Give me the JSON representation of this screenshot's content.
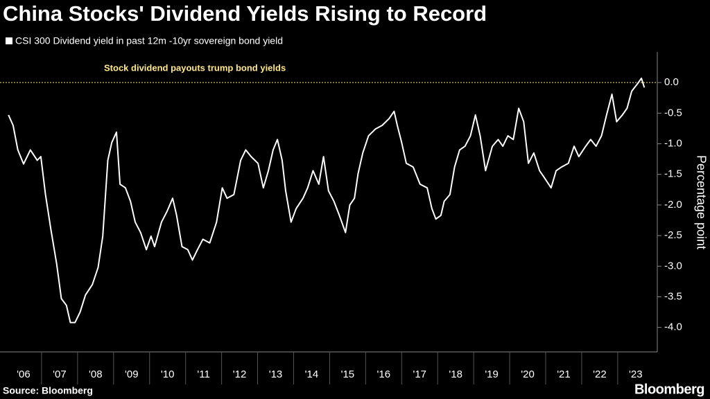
{
  "chart_data": {
    "type": "line",
    "title": "China Stocks' Dividend Yields Rising to Record",
    "legend_label": "CSI 300 Dividend yield in past 12m -10yr sovereign bond yield",
    "y_label": "Percentage point",
    "annotation": "Stock dividend payouts trump bond yields",
    "reference_line": 0,
    "source": "Source: Bloomberg",
    "brand": "Bloomberg",
    "xlim": [
      2006,
      2024.1
    ],
    "xticks": [
      {
        "value": 2006.5,
        "label": "'06"
      },
      {
        "value": 2007.5,
        "label": "'07"
      },
      {
        "value": 2008.5,
        "label": "'08"
      },
      {
        "value": 2009.5,
        "label": "'09"
      },
      {
        "value": 2010.5,
        "label": "'10"
      },
      {
        "value": 2011.5,
        "label": "'11"
      },
      {
        "value": 2012.5,
        "label": "'12"
      },
      {
        "value": 2013.5,
        "label": "'13"
      },
      {
        "value": 2014.5,
        "label": "'14"
      },
      {
        "value": 2015.5,
        "label": "'15"
      },
      {
        "value": 2016.5,
        "label": "'16"
      },
      {
        "value": 2017.5,
        "label": "'17"
      },
      {
        "value": 2018.5,
        "label": "'18"
      },
      {
        "value": 2019.5,
        "label": "'19"
      },
      {
        "value": 2020.5,
        "label": "'20"
      },
      {
        "value": 2021.5,
        "label": "'21"
      },
      {
        "value": 2022.5,
        "label": "'22"
      },
      {
        "value": 2023.5,
        "label": "'23"
      }
    ],
    "ylim": [
      -4.4,
      0.5
    ],
    "yticks": [
      {
        "value": 0,
        "label": "0.0"
      },
      -0.5,
      {
        "value": -1,
        "label": "-1.0"
      },
      -1.5,
      {
        "value": -2,
        "label": "-2.0"
      },
      -2.5,
      {
        "value": -3,
        "label": "-3.0"
      },
      -3.5,
      {
        "value": -4,
        "label": "-4.0"
      }
    ],
    "x": [
      2006.08,
      2006.21,
      2006.34,
      2006.5,
      2006.69,
      2006.88,
      2006.98,
      2007.11,
      2007.26,
      2007.42,
      2007.55,
      2007.69,
      2007.8,
      2007.93,
      2008.07,
      2008.22,
      2008.41,
      2008.57,
      2008.7,
      2008.84,
      2008.95,
      2009.08,
      2009.18,
      2009.33,
      2009.47,
      2009.6,
      2009.75,
      2009.91,
      2010.04,
      2010.14,
      2010.33,
      2010.48,
      2010.64,
      2010.75,
      2010.9,
      2011.06,
      2011.19,
      2011.33,
      2011.48,
      2011.67,
      2011.86,
      2012.02,
      2012.15,
      2012.34,
      2012.53,
      2012.67,
      2012.82,
      2013.01,
      2013.16,
      2013.3,
      2013.43,
      2013.55,
      2013.68,
      2013.78,
      2013.93,
      2014.07,
      2014.26,
      2014.39,
      2014.54,
      2014.7,
      2014.83,
      2014.97,
      2015.12,
      2015.27,
      2015.44,
      2015.56,
      2015.69,
      2015.79,
      2015.92,
      2016.08,
      2016.27,
      2016.46,
      2016.65,
      2016.79,
      2016.88,
      2017.0,
      2017.13,
      2017.32,
      2017.51,
      2017.71,
      2017.84,
      2017.95,
      2018.09,
      2018.18,
      2018.34,
      2018.47,
      2018.61,
      2018.76,
      2018.91,
      2019.05,
      2019.18,
      2019.33,
      2019.52,
      2019.68,
      2019.81,
      2019.95,
      2020.1,
      2020.25,
      2020.39,
      2020.52,
      2020.67,
      2020.83,
      2020.96,
      2021.15,
      2021.29,
      2021.44,
      2021.63,
      2021.79,
      2021.92,
      2022.11,
      2022.25,
      2022.4,
      2022.55,
      2022.69,
      2022.84,
      2022.97,
      2023.13,
      2023.26,
      2023.39,
      2023.55,
      2023.66,
      2023.74
    ],
    "series": [
      {
        "name": "CSI 300 Dividend yield in past 12m -10yr sovereign bond yield",
        "color": "#ffffff",
        "values": [
          -0.53,
          -0.7,
          -1.1,
          -1.33,
          -1.1,
          -1.27,
          -1.21,
          -1.83,
          -2.4,
          -2.96,
          -3.53,
          -3.64,
          -3.92,
          -3.92,
          -3.75,
          -3.47,
          -3.3,
          -3.02,
          -2.51,
          -1.27,
          -0.98,
          -0.81,
          -1.66,
          -1.72,
          -1.94,
          -2.28,
          -2.45,
          -2.73,
          -2.51,
          -2.68,
          -2.28,
          -2.11,
          -1.89,
          -2.17,
          -2.68,
          -2.73,
          -2.9,
          -2.73,
          -2.56,
          -2.62,
          -2.28,
          -1.72,
          -1.89,
          -1.83,
          -1.27,
          -1.1,
          -1.21,
          -1.32,
          -1.72,
          -1.44,
          -1.1,
          -0.93,
          -1.27,
          -1.77,
          -2.28,
          -2.06,
          -1.89,
          -1.72,
          -1.44,
          -1.66,
          -1.21,
          -1.77,
          -1.94,
          -2.17,
          -2.45,
          -2.0,
          -1.89,
          -1.49,
          -1.15,
          -0.87,
          -0.76,
          -0.7,
          -0.59,
          -0.47,
          -0.7,
          -0.98,
          -1.32,
          -1.38,
          -1.66,
          -1.72,
          -2.06,
          -2.23,
          -2.17,
          -1.94,
          -1.83,
          -1.38,
          -1.1,
          -1.04,
          -0.87,
          -0.53,
          -0.87,
          -1.44,
          -1.04,
          -0.93,
          -1.04,
          -0.87,
          -0.93,
          -0.42,
          -0.64,
          -1.32,
          -1.15,
          -1.44,
          -1.55,
          -1.72,
          -1.44,
          -1.38,
          -1.32,
          -1.04,
          -1.21,
          -1.04,
          -0.93,
          -1.04,
          -0.87,
          -0.53,
          -0.19,
          -0.64,
          -0.53,
          -0.42,
          -0.14,
          -0.02,
          0.07,
          -0.08
        ]
      }
    ]
  }
}
